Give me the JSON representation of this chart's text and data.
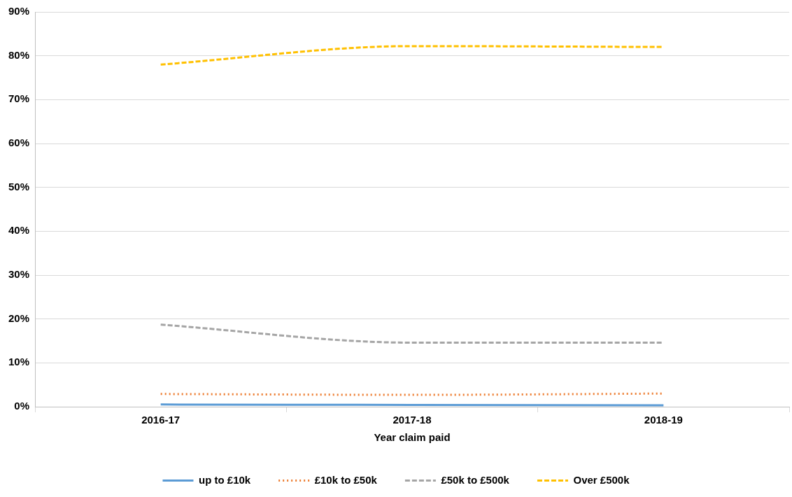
{
  "chart_data": {
    "type": "line",
    "xlabel": "Year claim paid",
    "categories": [
      "2016-17",
      "2017-18",
      "2018-19"
    ],
    "series": [
      {
        "name": "up to £10k",
        "color": "#5b9bd5",
        "line_style": "solid",
        "values": [
          0.5,
          0.4,
          0.3
        ]
      },
      {
        "name": "£10k to £50k",
        "color": "#ed7d31",
        "line_style": "dotted",
        "values": [
          2.9,
          2.7,
          3.0
        ]
      },
      {
        "name": "£50k to £500k",
        "color": "#a5a5a5",
        "line_style": "dashed",
        "values": [
          18.7,
          14.6,
          14.6
        ]
      },
      {
        "name": "Over £500k",
        "color": "#ffc000",
        "line_style": "dashed",
        "values": [
          78,
          82.2,
          82
        ]
      }
    ],
    "ylim": [
      0,
      90
    ],
    "yticks": [
      {
        "value": 0,
        "label": "0%"
      },
      {
        "value": 10,
        "label": "10%"
      },
      {
        "value": 20,
        "label": "20%"
      },
      {
        "value": 30,
        "label": "30%"
      },
      {
        "value": 40,
        "label": "40%"
      },
      {
        "value": 50,
        "label": "50%"
      },
      {
        "value": 60,
        "label": "60%"
      },
      {
        "value": 70,
        "label": "70%"
      },
      {
        "value": 80,
        "label": "80%"
      },
      {
        "value": 90,
        "label": "90%"
      }
    ],
    "grid": "y",
    "legend": "bottom",
    "marker": "none"
  }
}
